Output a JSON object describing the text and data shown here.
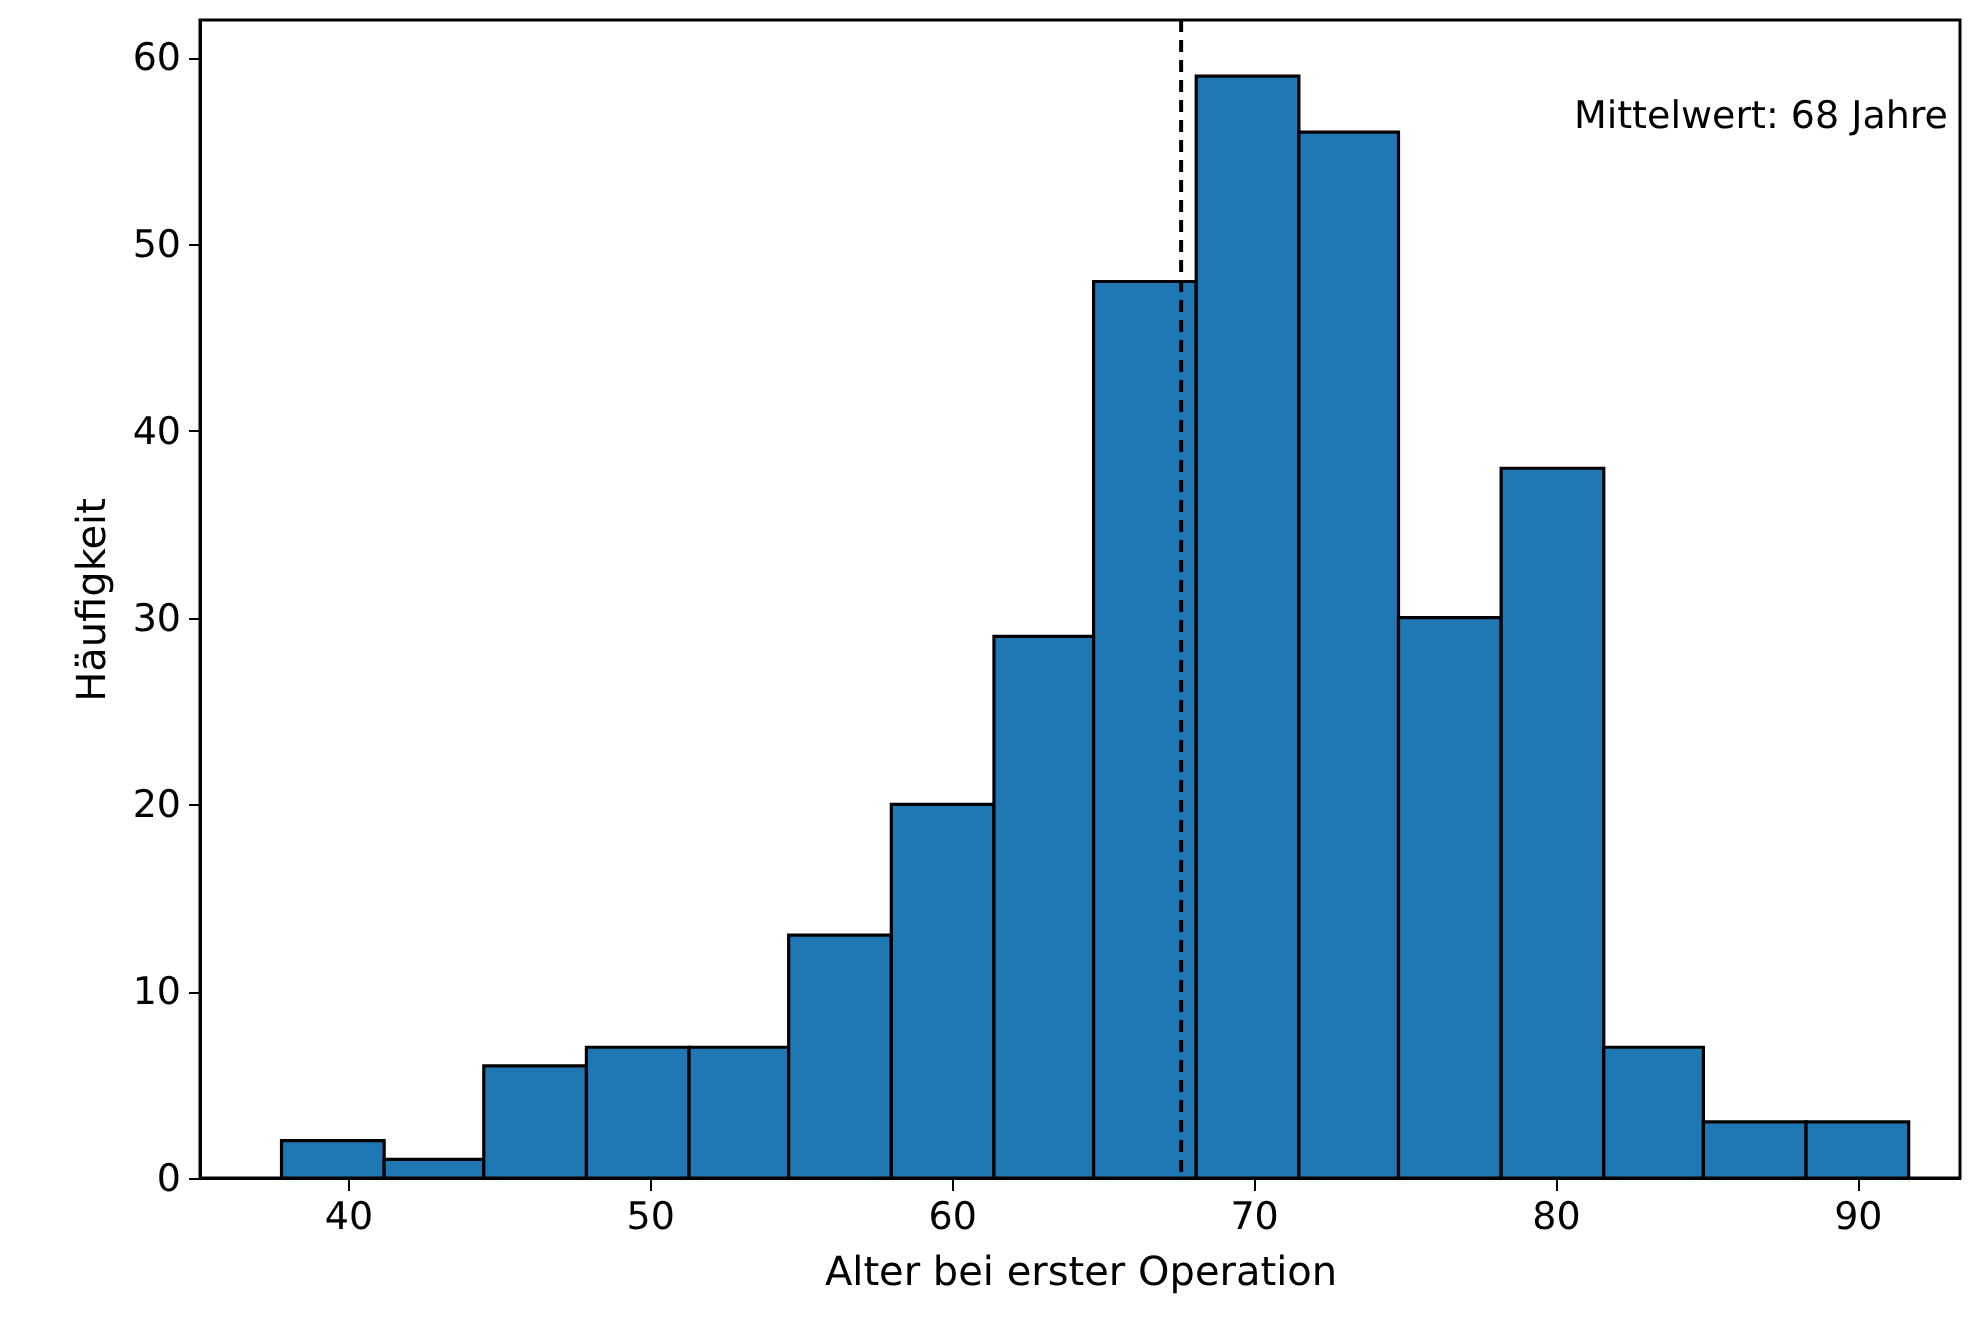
{
  "chart_data": {
    "type": "histogram",
    "xlabel": "Alter bei erster Operation",
    "ylabel": "Häufigkeit",
    "bins": [
      37.8,
      41.2,
      44.5,
      47.9,
      51.3,
      54.6,
      58.0,
      61.4,
      64.7,
      68.1,
      71.5,
      74.8,
      78.2,
      81.6,
      84.9,
      88.3,
      91.7
    ],
    "values": [
      2,
      1,
      6,
      7,
      7,
      13,
      20,
      29,
      48,
      59,
      56,
      30,
      38,
      7,
      3,
      3
    ],
    "color": "#1f77b4",
    "xlim": [
      35.1,
      93.4
    ],
    "xticks": [
      40,
      50,
      60,
      70,
      80,
      90
    ],
    "ylim": [
      0,
      62
    ],
    "yticks": [
      0,
      10,
      20,
      30,
      40,
      50,
      60
    ],
    "ref_lines": [
      {
        "axis": "x",
        "value": 67.6,
        "label": "Mittelwert: 68 Jahre",
        "color": "#000000",
        "line_style": "dashed"
      }
    ],
    "grid": false
  }
}
